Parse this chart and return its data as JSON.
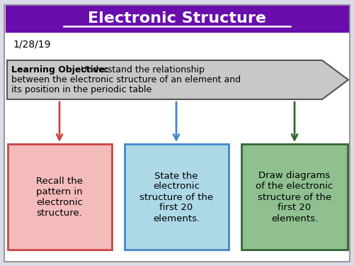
{
  "title": "Electronic Structure",
  "title_bg": "#6A0DAD",
  "title_color": "#FFFFFF",
  "date": "1/28/19",
  "slide_bg": "#DCDCE8",
  "objective_bold": "Learning Objective:",
  "objective_text": " Understand the relationship\nbetween the electronic structure of an element and\nits position in the periodic table",
  "box1_text": "Recall the\npattern in\nelectronic\nstructure.",
  "box2_text": "State the\nelectronic\nstructure of the\nfirst 20\nelements.",
  "box3_text": "Draw diagrams\nof the electronic\nstructure of the\nfirst 20\nelements.",
  "box1_bg": "#F4BBBB",
  "box2_bg": "#ADD8E6",
  "box3_bg": "#90C090",
  "box1_border": "#CC4444",
  "box2_border": "#4488CC",
  "box3_border": "#336633",
  "arrow1_color": "#CC4444",
  "arrow2_color": "#4488CC",
  "arrow3_color": "#336633",
  "big_arrow_fill": "#C8C8C8",
  "big_arrow_edge": "#555555"
}
